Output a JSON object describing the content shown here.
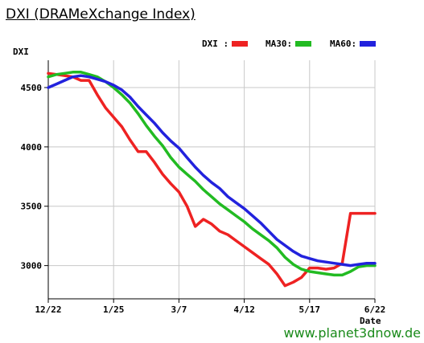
{
  "title": "DXI (DRAMeXchange Index)",
  "credit": "www.planet3dnow.de",
  "legend": {
    "dxi": "DXI  :",
    "ma30": "MA30:",
    "ma60": "MA60:"
  },
  "colors": {
    "dxi": "#ee2222",
    "ma30": "#22bb22",
    "ma60": "#2222dd",
    "grid": "#c8c8c8"
  },
  "chart_data": {
    "type": "line",
    "title": "DXI (DRAMeXchange Index)",
    "ylabel": "DXI",
    "xlabel": "Date",
    "xticks": [
      "12/22",
      "1/25",
      "3/7",
      "4/12",
      "5/17",
      "6/22"
    ],
    "yticks": [
      3000,
      3500,
      4000,
      4500
    ],
    "ylim": [
      2720,
      4730
    ],
    "xlim": [
      0,
      40
    ],
    "grid": true,
    "legend_position": "top-right",
    "series": [
      {
        "name": "DXI",
        "color": "#ee2222",
        "x": [
          0,
          1,
          2,
          3,
          4,
          5,
          6,
          7,
          8,
          9,
          10,
          11,
          12,
          13,
          14,
          15,
          16,
          17,
          18,
          19,
          20,
          21,
          22,
          23,
          24,
          25,
          26,
          27,
          28,
          29,
          30,
          31,
          32,
          33,
          34,
          35,
          36,
          37,
          38,
          39,
          40
        ],
        "y": [
          4620,
          4610,
          4600,
          4590,
          4560,
          4560,
          4440,
          4330,
          4250,
          4170,
          4060,
          3960,
          3960,
          3870,
          3770,
          3690,
          3620,
          3500,
          3330,
          3390,
          3350,
          3290,
          3260,
          3210,
          3160,
          3110,
          3060,
          3010,
          2930,
          2830,
          2860,
          2900,
          2980,
          2980,
          2970,
          2980,
          3020,
          3440,
          3440,
          3440,
          3440
        ]
      },
      {
        "name": "MA30",
        "color": "#22bb22",
        "x": [
          0,
          1,
          2,
          3,
          4,
          5,
          6,
          7,
          8,
          9,
          10,
          11,
          12,
          13,
          14,
          15,
          16,
          17,
          18,
          19,
          20,
          21,
          22,
          23,
          24,
          25,
          26,
          27,
          28,
          29,
          30,
          31,
          32,
          33,
          34,
          35,
          36,
          37,
          38,
          39,
          40
        ],
        "y": [
          4590,
          4610,
          4620,
          4630,
          4630,
          4610,
          4590,
          4550,
          4500,
          4440,
          4370,
          4280,
          4180,
          4090,
          4010,
          3910,
          3830,
          3770,
          3710,
          3640,
          3580,
          3520,
          3470,
          3420,
          3370,
          3310,
          3260,
          3210,
          3150,
          3070,
          3010,
          2970,
          2950,
          2940,
          2930,
          2920,
          2920,
          2950,
          2990,
          3000,
          3000
        ]
      },
      {
        "name": "MA60",
        "color": "#2222dd",
        "x": [
          0,
          1,
          2,
          3,
          4,
          5,
          6,
          7,
          8,
          9,
          10,
          11,
          12,
          13,
          14,
          15,
          16,
          17,
          18,
          19,
          20,
          21,
          22,
          23,
          24,
          25,
          26,
          27,
          28,
          29,
          30,
          31,
          32,
          33,
          34,
          35,
          36,
          37,
          38,
          39,
          40
        ],
        "y": [
          4500,
          4530,
          4560,
          4590,
          4600,
          4590,
          4570,
          4550,
          4520,
          4480,
          4420,
          4340,
          4270,
          4200,
          4120,
          4050,
          3990,
          3910,
          3830,
          3760,
          3700,
          3650,
          3580,
          3530,
          3480,
          3420,
          3360,
          3290,
          3220,
          3170,
          3120,
          3080,
          3060,
          3040,
          3030,
          3020,
          3010,
          3000,
          3010,
          3020,
          3020
        ]
      }
    ]
  }
}
